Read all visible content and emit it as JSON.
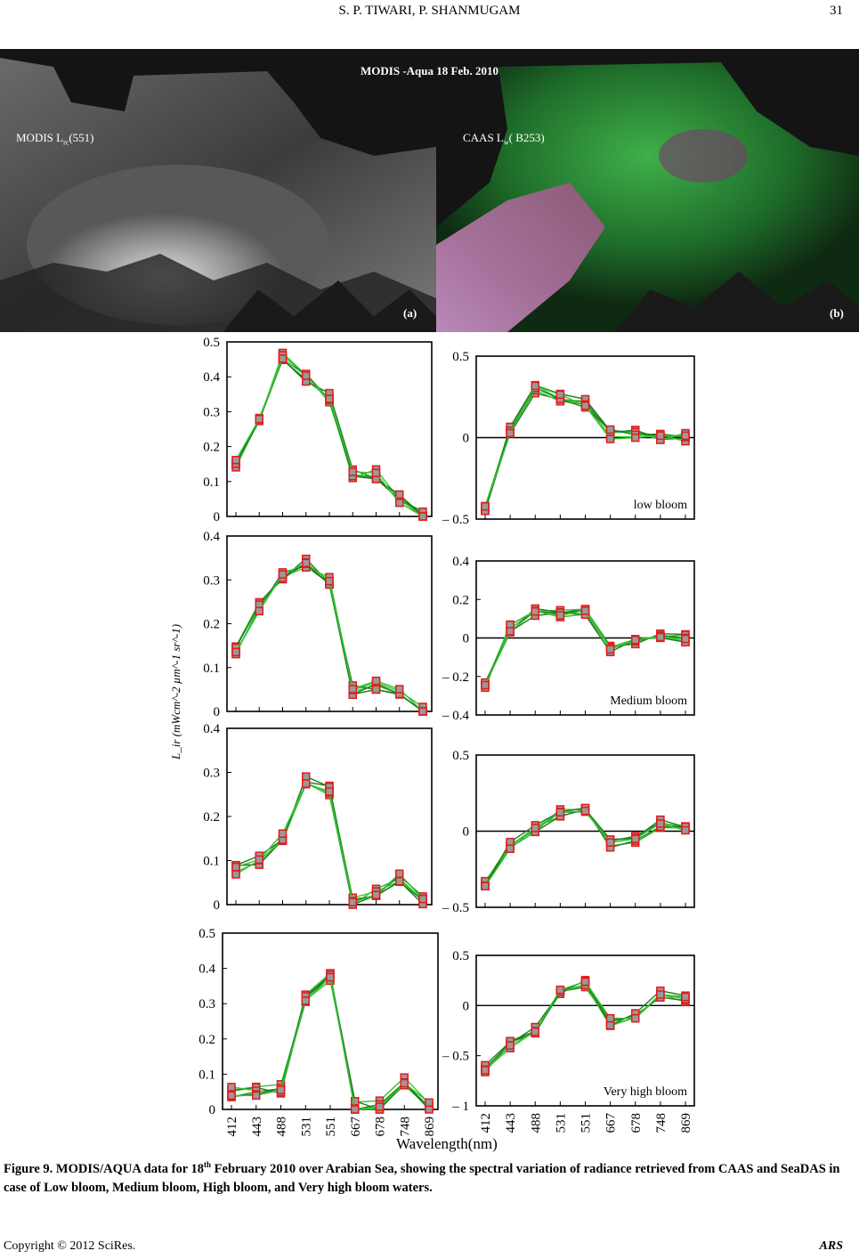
{
  "header": {
    "authors": "S. P. TIWARI, P. SHANMUGAM",
    "page_number": "31"
  },
  "satellite": {
    "title": "MODIS -Aqua  18 Feb. 2010",
    "left_label_main": "MODIS  L",
    "left_label_sub": "rc",
    "left_label_end": "(551)",
    "right_label_main": "CAAS  L",
    "right_label_sub": "w",
    "right_label_end": "( B253)",
    "panel_a": "(a)",
    "panel_b": "(b)"
  },
  "y_axis_label": "L_ir (mWcm^-2 µm^-1 sr^-1)",
  "x_axis_label": "Wavelength(nm)",
  "x_ticks": [
    "412",
    "443",
    "488",
    "531",
    "551",
    "667",
    "678",
    "748",
    "869"
  ],
  "chart_data": [
    {
      "type": "line",
      "panel": "left-1",
      "x": [
        412,
        443,
        488,
        531,
        551,
        667,
        678,
        748,
        869
      ],
      "ticks": [
        "0",
        "0.1",
        "0.2",
        "0.3",
        "0.4",
        "0.5"
      ],
      "ylim": [
        0,
        0.5
      ],
      "series": [
        {
          "values": [
            0.15,
            0.28,
            0.46,
            0.4,
            0.34,
            0.12,
            0.12,
            0.05,
            0.0
          ]
        }
      ]
    },
    {
      "type": "line",
      "panel": "right-1",
      "label": "low  bloom",
      "x": [
        412,
        443,
        488,
        531,
        551,
        667,
        678,
        748,
        869
      ],
      "ticks": [
        "– 0.5",
        "0",
        "0.5"
      ],
      "ylim": [
        -0.5,
        0.5
      ],
      "series": [
        {
          "values": [
            -0.42,
            0.05,
            0.3,
            0.24,
            0.21,
            0.02,
            0.02,
            0.0,
            0.0
          ]
        }
      ]
    },
    {
      "type": "line",
      "panel": "left-2",
      "x": [
        412,
        443,
        488,
        531,
        551,
        667,
        678,
        748,
        869
      ],
      "ticks": [
        "0",
        "0.1",
        "0.2",
        "0.3",
        "0.4"
      ],
      "ylim": [
        0,
        0.4
      ],
      "series": [
        {
          "values": [
            0.14,
            0.24,
            0.31,
            0.34,
            0.3,
            0.05,
            0.06,
            0.05,
            0.0
          ]
        }
      ]
    },
    {
      "type": "line",
      "panel": "right-2",
      "label": "Medium bloom",
      "x": [
        412,
        443,
        488,
        531,
        551,
        667,
        678,
        748,
        869
      ],
      "ticks": [
        "– 0.4",
        "– 0.2",
        "0",
        "0.2",
        "0.4"
      ],
      "ylim": [
        -0.4,
        0.4
      ],
      "series": [
        {
          "values": [
            -0.24,
            0.05,
            0.13,
            0.13,
            0.13,
            -0.05,
            -0.03,
            0.0,
            0.0
          ]
        }
      ]
    },
    {
      "type": "line",
      "panel": "left-3",
      "x": [
        412,
        443,
        488,
        531,
        551,
        667,
        678,
        748,
        869
      ],
      "ticks": [
        "0",
        "0.1",
        "0.2",
        "0.3",
        "0.4"
      ],
      "ylim": [
        0,
        0.4
      ],
      "series": [
        {
          "values": [
            0.08,
            0.1,
            0.15,
            0.28,
            0.26,
            0.01,
            0.03,
            0.06,
            0.01
          ]
        }
      ]
    },
    {
      "type": "line",
      "panel": "right-3",
      "x": [
        412,
        443,
        488,
        531,
        551,
        667,
        678,
        748,
        869
      ],
      "ticks": [
        "– 0.5",
        "0",
        "0.5"
      ],
      "ylim": [
        -0.5,
        0.5
      ],
      "series": [
        {
          "values": [
            -0.35,
            -0.1,
            0.02,
            0.12,
            0.15,
            -0.08,
            -0.06,
            0.05,
            0.03
          ]
        }
      ]
    },
    {
      "type": "line",
      "panel": "left-4",
      "x": [
        412,
        443,
        488,
        531,
        551,
        667,
        678,
        748,
        869
      ],
      "ticks": [
        "0",
        "0.1",
        "0.2",
        "0.3",
        "0.4",
        "0.5"
      ],
      "ylim": [
        0,
        0.5
      ],
      "series": [
        {
          "values": [
            0.05,
            0.05,
            0.06,
            0.32,
            0.38,
            0.01,
            0.01,
            0.08,
            0.01
          ]
        }
      ]
    },
    {
      "type": "line",
      "panel": "right-4",
      "label": "Very high bloom",
      "x": [
        412,
        443,
        488,
        531,
        551,
        667,
        678,
        748,
        869
      ],
      "ticks": [
        "– 1",
        "– 0.5",
        "0",
        "0.5"
      ],
      "ylim": [
        -1,
        0.5
      ],
      "series": [
        {
          "values": [
            -0.62,
            -0.38,
            -0.25,
            0.12,
            0.22,
            -0.16,
            -0.12,
            0.12,
            0.06
          ]
        }
      ]
    }
  ],
  "caption": {
    "lead": "Figure 9. MODIS/AQUA data for 18",
    "sup": "th",
    "rest": " February 2010 over Arabian Sea, showing the spectral variation of radiance retrieved from CAAS and SeaDAS in case of Low bloom, Medium bloom, High bloom, and Very high bloom waters."
  },
  "footer": {
    "copyright": "Copyright © 2012 SciRes.",
    "journal": "ARS"
  }
}
